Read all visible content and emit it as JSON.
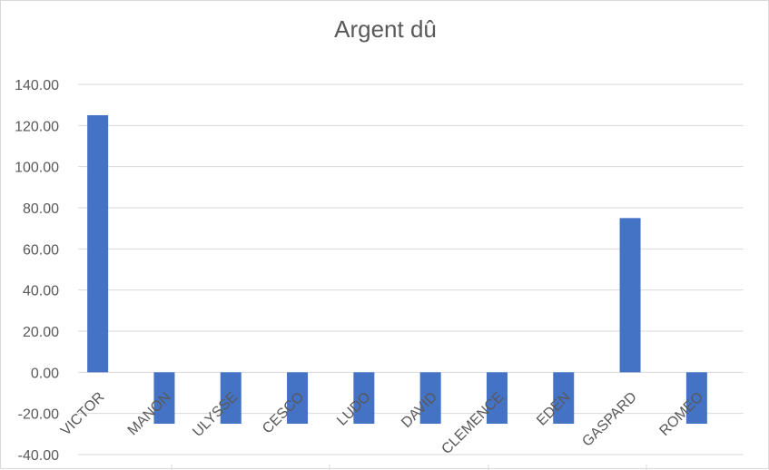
{
  "chart_data": {
    "type": "bar",
    "title": "Argent dû",
    "xlabel": "",
    "ylabel": "",
    "categories": [
      "VICTOR",
      "MANON",
      "ULYSSE",
      "CESCO",
      "LUDO",
      "DAVID",
      "CLEMENCE",
      "EDEN",
      "GASPARD",
      "ROMEO"
    ],
    "values": [
      125,
      -25,
      -25,
      -25,
      -25,
      -25,
      -25,
      -25,
      75,
      -25
    ],
    "ylim": [
      -40,
      140
    ],
    "yticks": [
      "140.00",
      "120.00",
      "100.00",
      "80.00",
      "60.00",
      "40.00",
      "20.00",
      "0.00",
      "-20.00",
      "-40.00"
    ],
    "ytick_values": [
      140,
      120,
      100,
      80,
      60,
      40,
      20,
      0,
      -20,
      -40
    ],
    "grid": true,
    "bar_color": "#4472c4",
    "grid_color": "#d9d9d9",
    "text_color": "#595959"
  }
}
